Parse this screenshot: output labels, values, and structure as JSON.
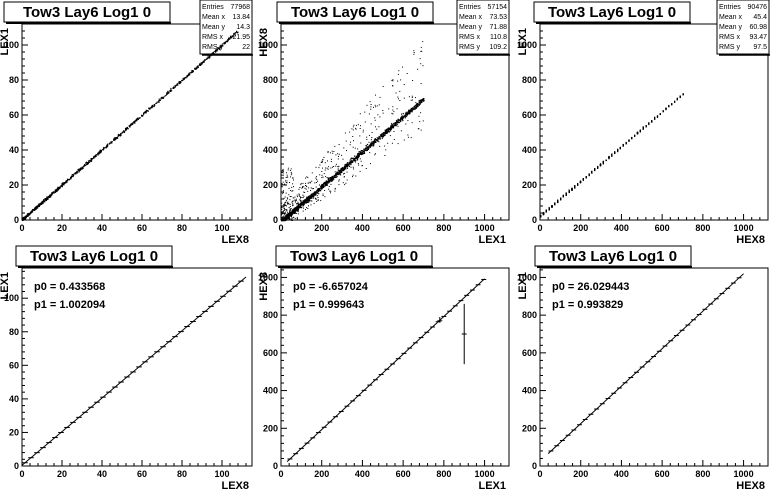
{
  "chart_data": [
    {
      "type": "scatter",
      "title": "Tow3 Lay6 Log1 0",
      "xlabel": "LEX8",
      "ylabel": "LEX1",
      "xlim": [
        0,
        115
      ],
      "ylim": [
        0,
        112
      ],
      "xticks": [
        0,
        20,
        40,
        60,
        80,
        100
      ],
      "yticks": [
        0,
        20,
        40,
        60,
        80,
        100
      ],
      "stats": [
        [
          "Entries",
          "77968"
        ],
        [
          "Mean x",
          "13.84"
        ],
        [
          "Mean y",
          "14.3"
        ],
        [
          "RMS x",
          "21.95"
        ],
        [
          "RMS y",
          "22"
        ]
      ],
      "scatter": {
        "slope": 1.0,
        "intercept": 0.4,
        "x_start": 0,
        "x_end": 108,
        "spread": 0.8,
        "quantized": false,
        "n": 900,
        "noise": 0
      }
    },
    {
      "type": "scatter",
      "title": "Tow3 Lay6 Log1 0",
      "xlabel": "LEX1",
      "ylabel": "HEX8",
      "xlim": [
        0,
        1120
      ],
      "ylim": [
        0,
        1120
      ],
      "xticks": [
        0,
        200,
        400,
        600,
        800,
        1000
      ],
      "yticks": [
        0,
        200,
        400,
        600,
        800,
        1000
      ],
      "stats": [
        [
          "Entries",
          "57154"
        ],
        [
          "Mean x",
          "73.53"
        ],
        [
          "Mean y",
          "71.88"
        ],
        [
          "RMS x",
          "110.8"
        ],
        [
          "RMS y",
          "109.2"
        ]
      ],
      "scatter": {
        "slope": 1.0,
        "intercept": -6.7,
        "x_start": 0,
        "x_end": 700,
        "spread": 14,
        "quantized": false,
        "n": 1400,
        "noise": 1
      }
    },
    {
      "type": "scatter",
      "title": "Tow3 Lay6 Log1 0",
      "xlabel": "HEX8",
      "ylabel": "LEX1",
      "xlim": [
        0,
        1120
      ],
      "ylim": [
        0,
        1120
      ],
      "xticks": [
        0,
        200,
        400,
        600,
        800,
        1000
      ],
      "yticks": [
        0,
        200,
        400,
        600,
        800,
        1000
      ],
      "stats": [
        [
          "Entries",
          "90476"
        ],
        [
          "Mean x",
          "45.4"
        ],
        [
          "Mean y",
          "60.98"
        ],
        [
          "RMS x",
          "93.47"
        ],
        [
          "RMS y",
          "97.5"
        ]
      ],
      "scatter": {
        "slope": 0.994,
        "intercept": 26,
        "x_start": 0,
        "x_end": 700,
        "spread": 6,
        "quantized": true,
        "n": 700,
        "noise": 0
      }
    },
    {
      "type": "line",
      "title": "Tow3 Lay6 Log1 0",
      "xlabel": "LEX8",
      "ylabel": "LEX1",
      "xlim": [
        0,
        115
      ],
      "ylim": [
        0,
        118
      ],
      "xticks": [
        0,
        20,
        40,
        60,
        80,
        100
      ],
      "yticks": [
        0,
        20,
        40,
        60,
        80,
        100
      ],
      "fit_params": [
        [
          "p0",
          "0.433568"
        ],
        [
          "p1",
          "1.002094"
        ]
      ],
      "fit": {
        "p0": 0.433568,
        "p1": 1.002094,
        "x_start": 0,
        "x_end": 112,
        "step": 3,
        "xerr": 1.4,
        "outliers": []
      }
    },
    {
      "type": "line",
      "title": "Tow3 Lay6 Log1 0",
      "xlabel": "LEX1",
      "ylabel": "HEX8",
      "xlim": [
        0,
        1120
      ],
      "ylim": [
        0,
        1050
      ],
      "xticks": [
        0,
        200,
        400,
        600,
        800,
        1000
      ],
      "yticks": [
        0,
        200,
        400,
        600,
        800,
        1000
      ],
      "fit_params": [
        [
          "p0",
          "-6.657024"
        ],
        [
          "p1",
          "0.999643"
        ]
      ],
      "fit": {
        "p0": -6.657024,
        "p1": 0.999643,
        "x_start": 30,
        "x_end": 1000,
        "step": 28,
        "xerr": 12,
        "outliers": [
          {
            "x": 900,
            "y": 700,
            "ylo": 540,
            "yhi": 860
          },
          {
            "x": 780,
            "y": 770,
            "ylo": 760,
            "yhi": 790
          }
        ]
      }
    },
    {
      "type": "line",
      "title": "Tow3 Lay6 Log1 0",
      "xlabel": "HEX8",
      "ylabel": "LEX1",
      "xlim": [
        0,
        1120
      ],
      "ylim": [
        0,
        1050
      ],
      "xticks": [
        0,
        200,
        400,
        600,
        800,
        1000
      ],
      "yticks": [
        0,
        200,
        400,
        600,
        800,
        1000
      ],
      "fit_params": [
        [
          "p0",
          "26.029443"
        ],
        [
          "p1",
          "0.993829"
        ]
      ],
      "fit": {
        "p0": 26.029443,
        "p1": 0.993829,
        "x_start": 40,
        "x_end": 1000,
        "step": 28,
        "xerr": 12,
        "outliers": []
      }
    }
  ]
}
